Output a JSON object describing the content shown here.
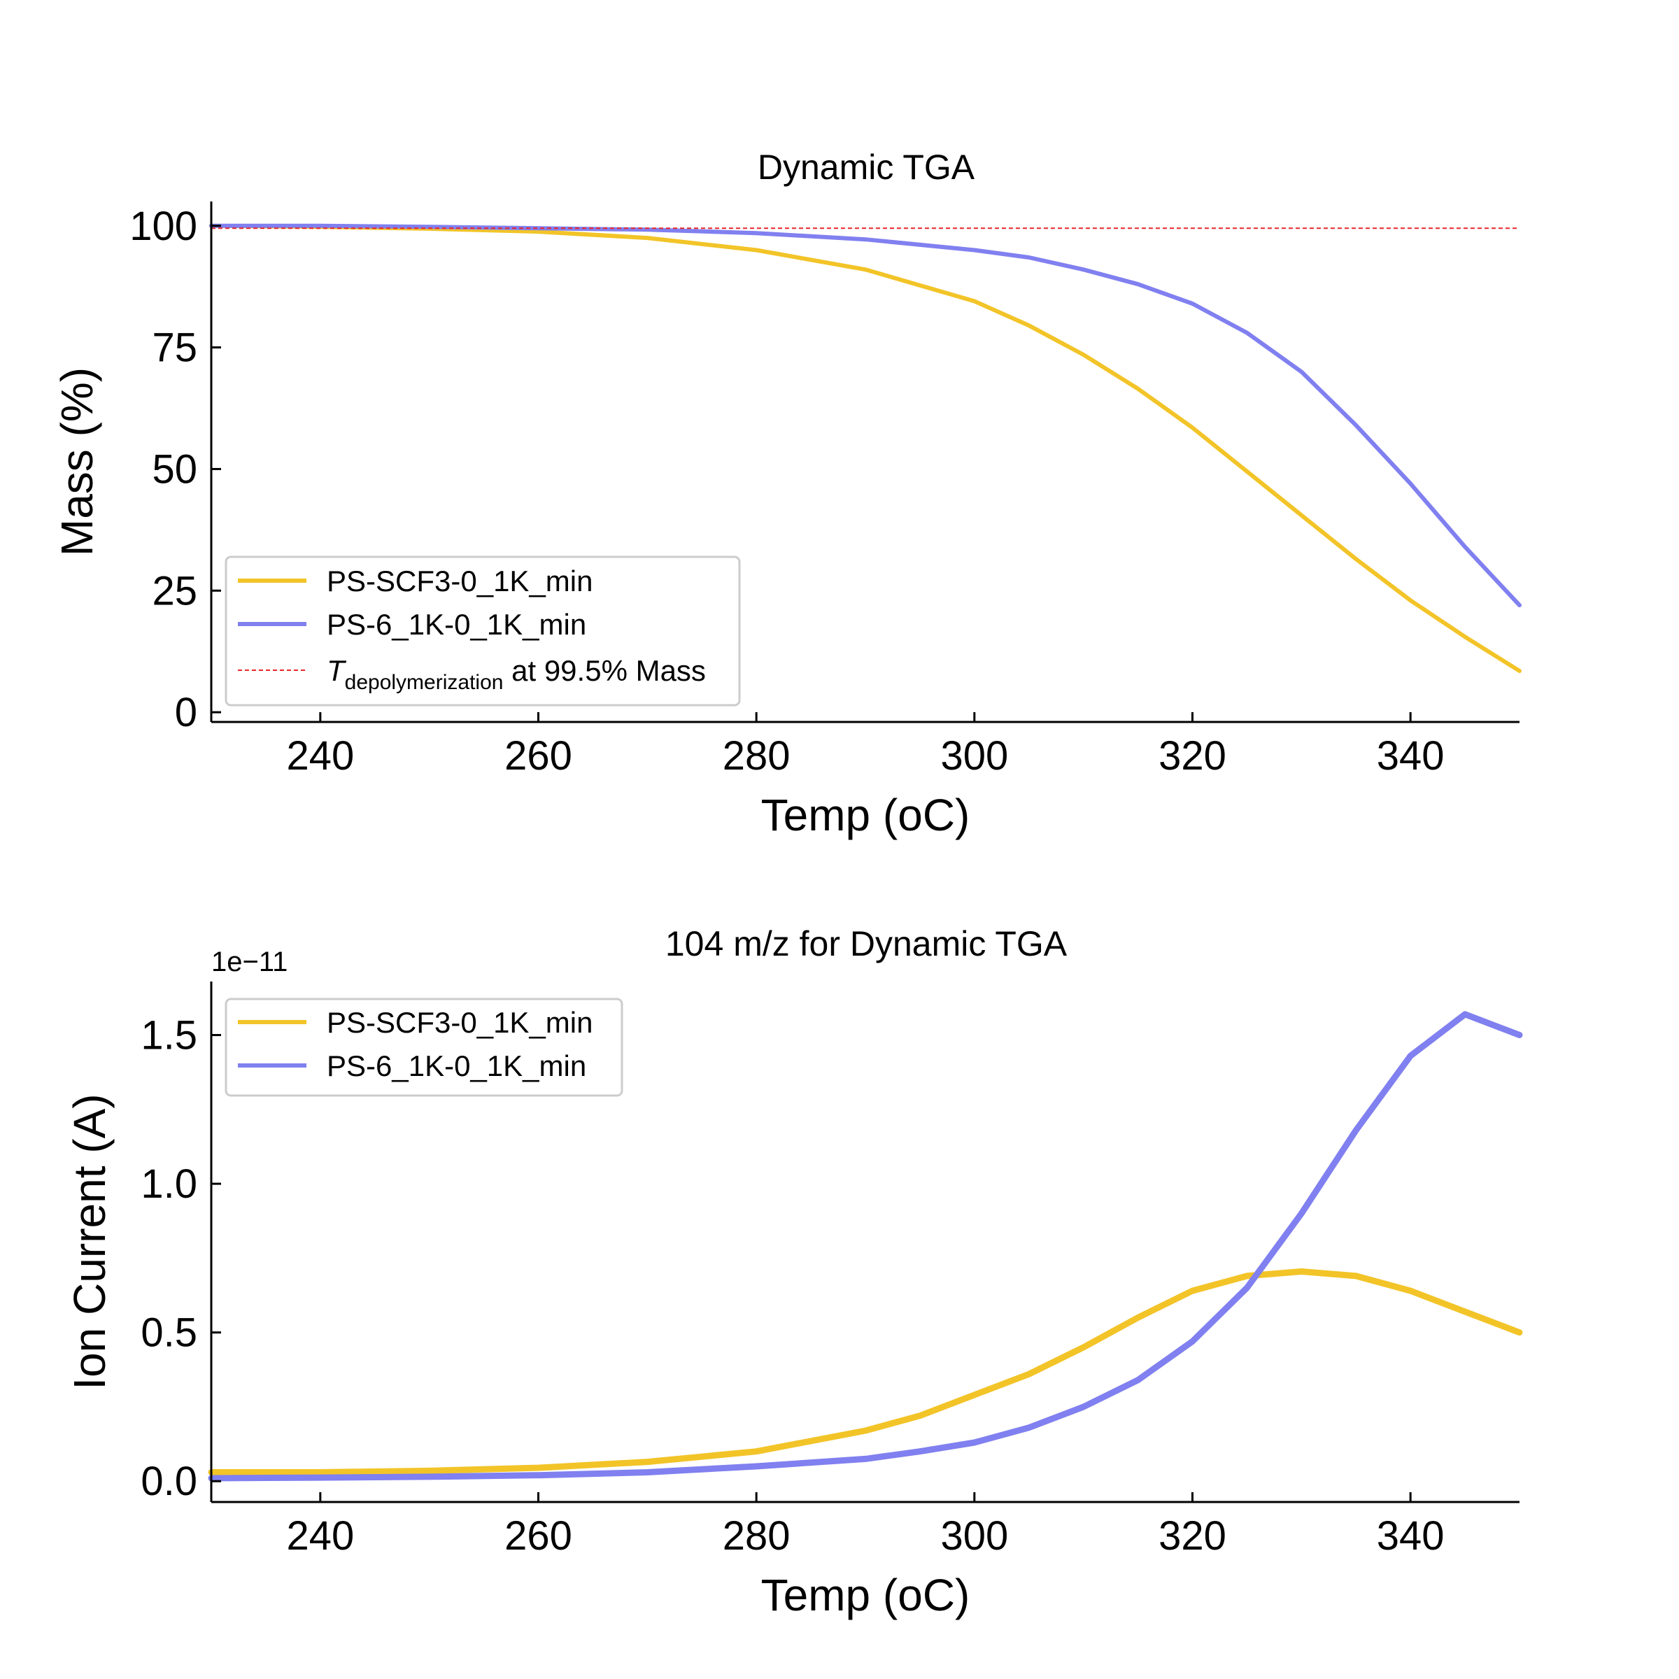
{
  "chart_data": [
    {
      "type": "line",
      "title": "Dynamic TGA",
      "xlabel": "Temp (oC)",
      "ylabel": "Mass (%)",
      "xlim": [
        230,
        350
      ],
      "ylim": [
        -2,
        105
      ],
      "xticks": [
        240,
        260,
        280,
        300,
        320,
        340
      ],
      "yticks": [
        0,
        25,
        50,
        75,
        100
      ],
      "x_tick_labels": [
        "240",
        "260",
        "280",
        "300",
        "320",
        "340"
      ],
      "y_tick_labels": [
        "0",
        "25",
        "50",
        "75",
        "100"
      ],
      "grid": false,
      "legend_placement": "lower-left",
      "x": [
        230,
        240,
        250,
        260,
        270,
        280,
        290,
        300,
        305,
        310,
        315,
        320,
        325,
        330,
        335,
        340,
        345,
        350
      ],
      "series": [
        {
          "name": "PS-SCF3-0_1K_min",
          "color": "#f2c428",
          "values": [
            100,
            99.8,
            99.4,
            98.8,
            97.5,
            95,
            91,
            84.5,
            79.5,
            73.5,
            66.5,
            58.5,
            49.5,
            40.5,
            31.5,
            23,
            15.5,
            8.5
          ]
        },
        {
          "name": "PS-6_1K-0_1K_min",
          "color": "#8080f0",
          "values": [
            100,
            100,
            99.8,
            99.5,
            99.2,
            98.5,
            97.2,
            95,
            93.5,
            91,
            88,
            84,
            78,
            70,
            59,
            47,
            34,
            22
          ]
        }
      ],
      "reference_line": {
        "label_prefix": "T",
        "label_subscript": "depolymerization",
        "label_suffix": " at 99.5% Mass",
        "y": 99.5,
        "color": "#e8262a",
        "style": "dashed"
      }
    },
    {
      "type": "line",
      "title": "104 m/z for Dynamic TGA",
      "xlabel": "Temp (oC)",
      "ylabel": "Ion Current (A)",
      "y_offset_text": "1e−11",
      "xlim": [
        230,
        350
      ],
      "ylim": [
        -0.07,
        1.68
      ],
      "xticks": [
        240,
        260,
        280,
        300,
        320,
        340
      ],
      "yticks": [
        0.0,
        0.5,
        1.0,
        1.5
      ],
      "x_tick_labels": [
        "240",
        "260",
        "280",
        "300",
        "320",
        "340"
      ],
      "y_tick_labels": [
        "0.0",
        "0.5",
        "1.0",
        "1.5"
      ],
      "grid": false,
      "legend_placement": "upper-left",
      "x": [
        230,
        240,
        250,
        260,
        270,
        280,
        290,
        295,
        300,
        305,
        310,
        315,
        320,
        325,
        330,
        335,
        340,
        345,
        350
      ],
      "series": [
        {
          "name": "PS-SCF3-0_1K_min",
          "color": "#f2c428",
          "values": [
            0.03,
            0.03,
            0.035,
            0.045,
            0.065,
            0.1,
            0.17,
            0.22,
            0.29,
            0.36,
            0.45,
            0.55,
            0.64,
            0.69,
            0.705,
            0.69,
            0.64,
            0.57,
            0.5
          ]
        },
        {
          "name": "PS-6_1K-0_1K_min",
          "color": "#8080f0",
          "values": [
            0.01,
            0.012,
            0.015,
            0.02,
            0.03,
            0.05,
            0.075,
            0.1,
            0.13,
            0.18,
            0.25,
            0.34,
            0.47,
            0.65,
            0.9,
            1.18,
            1.43,
            1.57,
            1.5
          ]
        }
      ]
    }
  ]
}
